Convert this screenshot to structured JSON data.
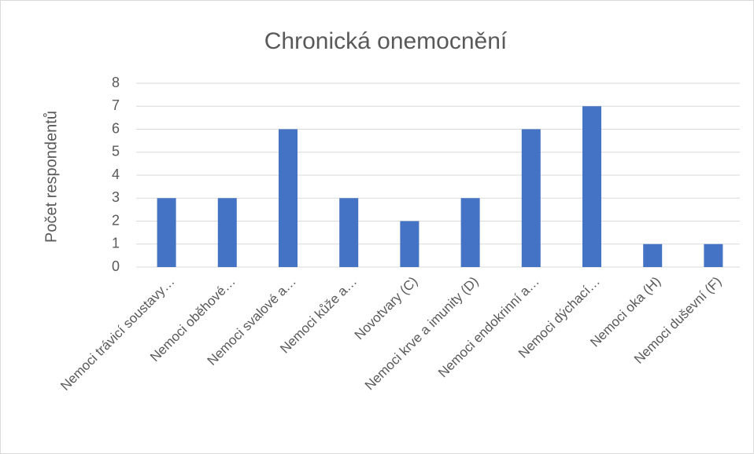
{
  "chart_data": {
    "type": "bar",
    "title": "Chronická onemocnění",
    "y_label": "Počet respondentů",
    "categories": [
      "Nemoci trávicí soustavy…",
      "Nemoci oběhové…",
      "Nemoci svalové a…",
      "Nemoci kůže a…",
      "Novotvary (C)",
      "Nemoci krve a imunity (D)",
      "Nemoci endokrinní a…",
      "Nemoci dýchací…",
      "Nemoci oka (H)",
      "Nemoci duševní (F)"
    ],
    "values": [
      3,
      3,
      6,
      3,
      2,
      3,
      6,
      7,
      1,
      1
    ],
    "color": "#4472c4",
    "ylim": [
      0,
      8
    ],
    "yticks": [
      0,
      1,
      2,
      3,
      4,
      5,
      6,
      7,
      8
    ],
    "grid": true
  }
}
